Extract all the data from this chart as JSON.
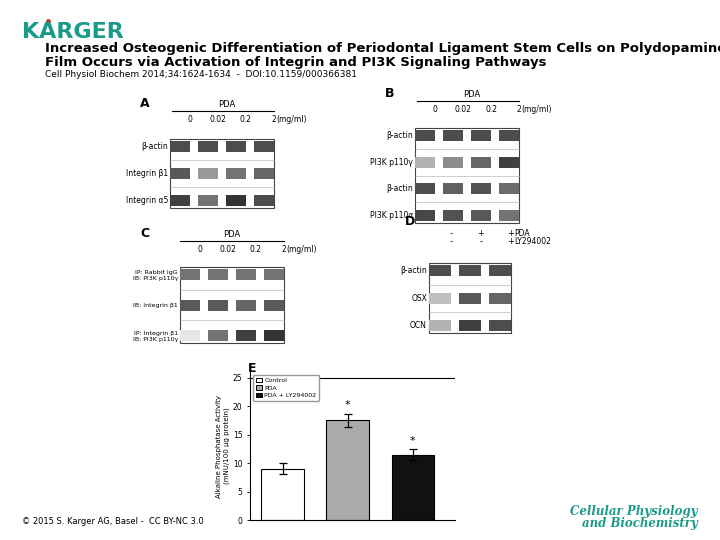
{
  "background_color": "#ffffff",
  "karger_text": "KARGER",
  "karger_color": "#1a9b8a",
  "title_line1": "Increased Osteogenic Differentiation of Periodontal Ligament Stem Cells on Polydopamine",
  "title_line2": "Film Occurs via Activation of Integrin and PI3K Signaling Pathways",
  "title_fontsize": 9.5,
  "subtitle": "Cell Physiol Biochem 2014;34:1624-1634  -  DOI:10.1159/000366381",
  "subtitle_fontsize": 6.5,
  "footer_left": "© 2015 S. Karger AG, Basel -  CC BY-NC 3.0",
  "footer_right_line1": "Cellular Physiology",
  "footer_right_line2": "and Biochemistry",
  "bar_values": [
    9.0,
    17.5,
    11.5
  ],
  "bar_errors": [
    1.0,
    1.2,
    0.9
  ],
  "bar_colors": [
    "#ffffff",
    "#aaaaaa",
    "#111111"
  ],
  "bar_labels": [
    "Control",
    "PDA",
    "PDA + LY294002"
  ],
  "bar_ylim": [
    0,
    26
  ],
  "bar_yticks": [
    0,
    5,
    10,
    15,
    20,
    25
  ],
  "bar_asterisks": [
    false,
    true,
    true
  ]
}
